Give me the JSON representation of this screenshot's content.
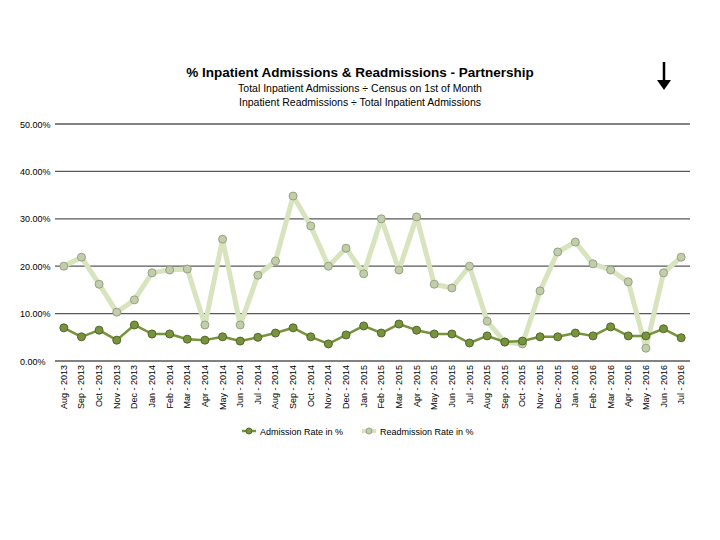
{
  "chart_data": {
    "type": "line",
    "title": "% Inpatient Admissions & Readmissions - Partnership",
    "subtitle": [
      "Total Inpatient Admissions ÷ Census on 1st of Month",
      "Inpatient Readmissions ÷ Total Inpatient Admissions"
    ],
    "categories": [
      "Aug - 2013",
      "Sep - 2013",
      "Oct - 2013",
      "Nov - 2013",
      "Dec - 2013",
      "Jan - 2014",
      "Feb - 2014",
      "Mar - 2014",
      "Apr - 2014",
      "May - 2014",
      "Jun - 2014",
      "Jul - 2014",
      "Aug - 2014",
      "Sep - 2014",
      "Oct - 2014",
      "Nov - 2014",
      "Dec - 2014",
      "Jan - 2015",
      "Feb - 2015",
      "Mar - 2015",
      "Apr - 2015",
      "May - 2015",
      "Jun - 2015",
      "Jul - 2015",
      "Aug - 2015",
      "Sep - 2015",
      "Oct - 2015",
      "Nov - 2015",
      "Dec - 2015",
      "Jan - 2016",
      "Feb - 2016",
      "Mar - 2016",
      "Apr - 2016",
      "May - 2016",
      "Jun - 2016",
      "Jul - 2016"
    ],
    "series": [
      {
        "name": "Admission Rate in %",
        "color": "#77933c",
        "marker": "circle",
        "line_style": "solid",
        "values": [
          7.0,
          5.1,
          6.5,
          4.4,
          7.6,
          5.7,
          5.7,
          4.6,
          4.4,
          5.1,
          4.2,
          5.0,
          5.9,
          7.0,
          5.1,
          3.6,
          5.5,
          7.4,
          5.9,
          7.8,
          6.5,
          5.7,
          5.7,
          3.8,
          5.3,
          4.0,
          4.2,
          5.1,
          5.1,
          5.9,
          5.3,
          7.2,
          5.3,
          5.3,
          6.8,
          4.9
        ]
      },
      {
        "name": "Readmission Rate in %",
        "color": "#d7e4bd",
        "marker": "circle",
        "line_style": "solid",
        "values": [
          20.0,
          21.9,
          16.2,
          10.3,
          12.9,
          18.6,
          19.2,
          19.4,
          7.6,
          25.7,
          7.6,
          18.1,
          21.1,
          34.8,
          28.5,
          20.0,
          23.8,
          18.4,
          30.0,
          19.2,
          30.4,
          16.2,
          15.4,
          20.0,
          8.4,
          4.0,
          3.6,
          14.8,
          23.0,
          25.1,
          20.5,
          19.2,
          16.7,
          2.7,
          18.6,
          21.9
        ]
      }
    ],
    "ylim": [
      0,
      50
    ],
    "yticks": [
      {
        "value": 0,
        "label": "0.00%"
      },
      {
        "value": 10,
        "label": "10.00%"
      },
      {
        "value": 20,
        "label": "20.00%"
      },
      {
        "value": 30,
        "label": "30.00%"
      },
      {
        "value": 40,
        "label": "40.00%"
      },
      {
        "value": 50,
        "label": "50.00%"
      }
    ],
    "grid": true,
    "legend": "bottom"
  }
}
